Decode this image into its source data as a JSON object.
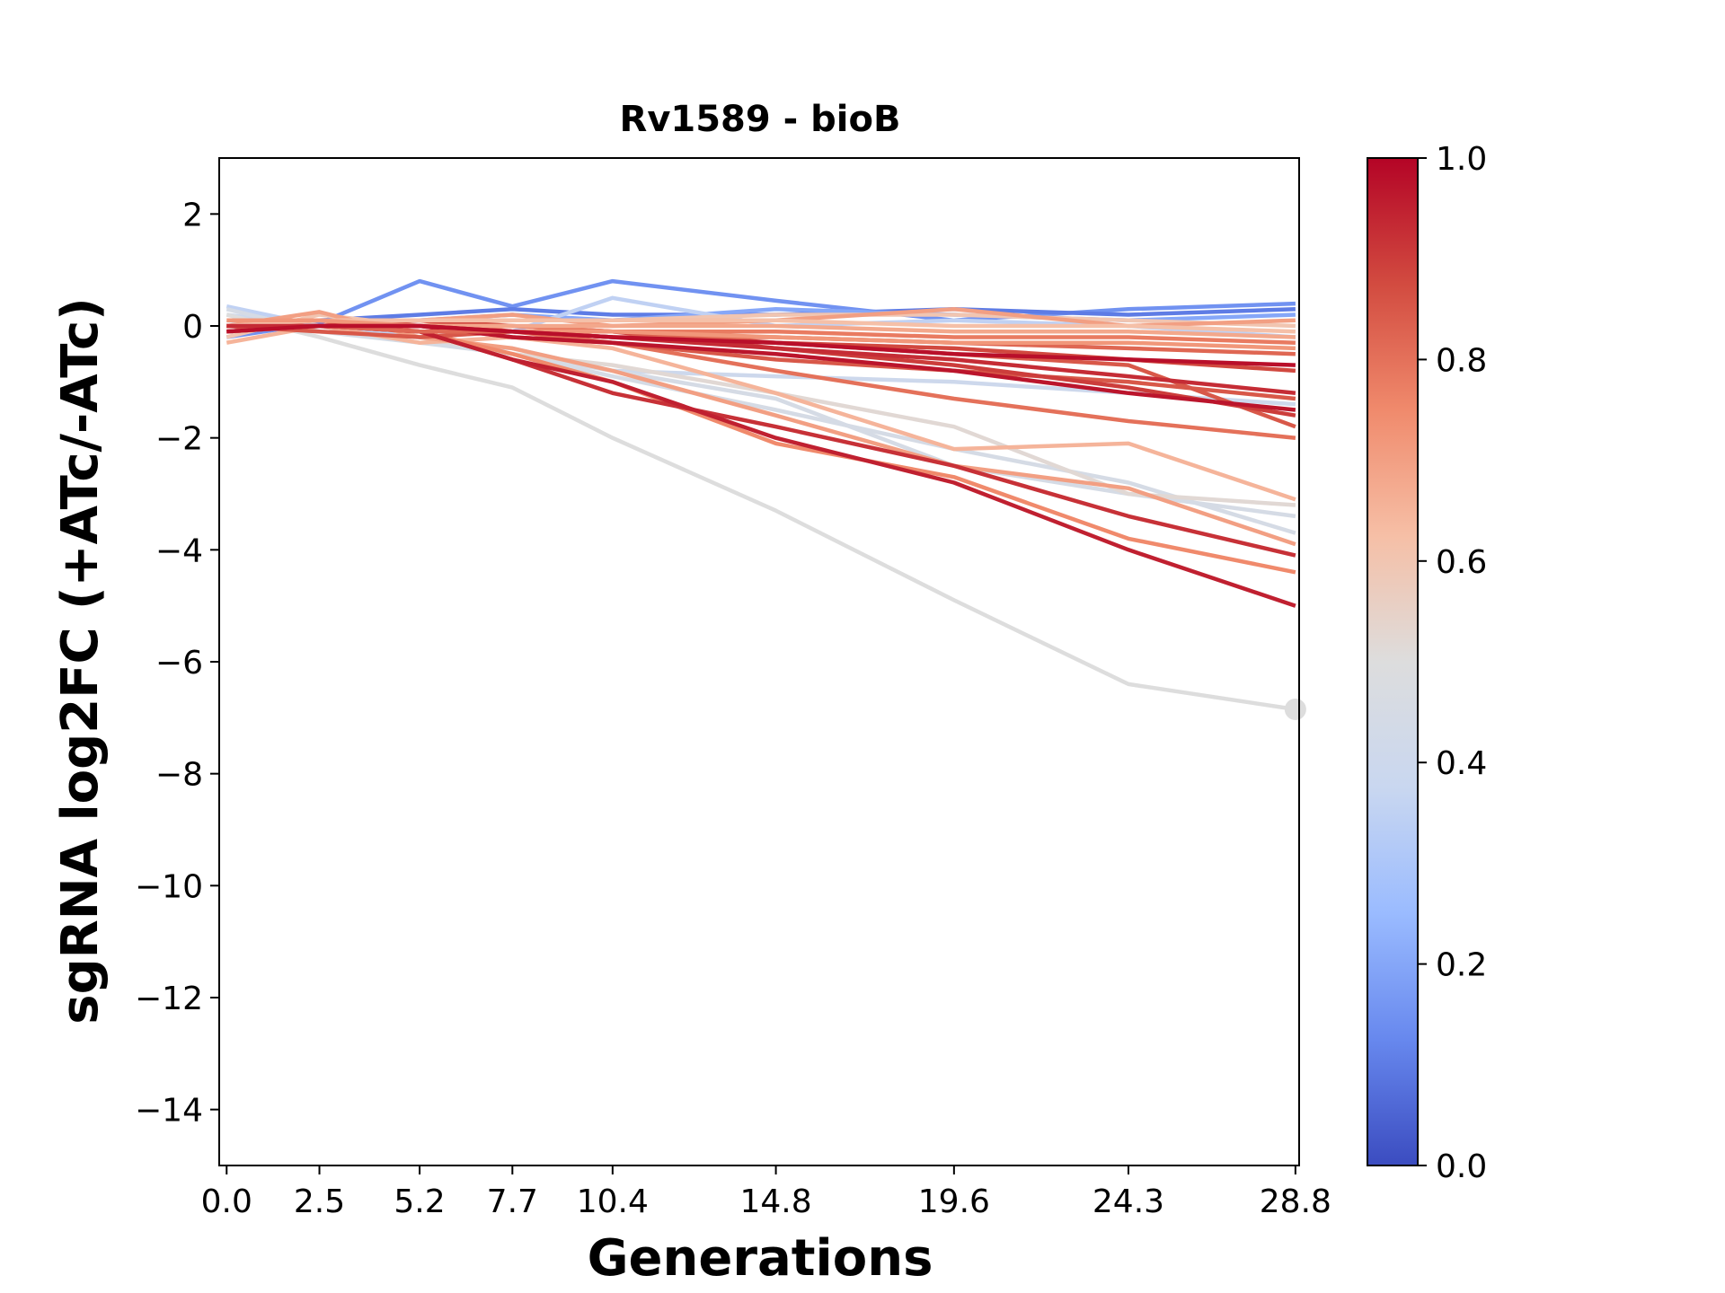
{
  "chart_data": {
    "type": "line",
    "title": "Rv1589 - bioB",
    "xlabel": "Generations",
    "ylabel": "sgRNA log2FC (+ATc/-ATc)",
    "x": [
      0.0,
      2.5,
      5.2,
      7.7,
      10.4,
      14.8,
      19.6,
      24.3,
      28.8
    ],
    "x_tick_labels": [
      "0.0",
      "2.5",
      "5.2",
      "7.7",
      "10.4",
      "14.8",
      "19.6",
      "24.3",
      "28.8"
    ],
    "xlim": [
      -0.2,
      28.9
    ],
    "ylim": [
      -15,
      3
    ],
    "y_ticks": [
      2,
      0,
      -2,
      -4,
      -6,
      -8,
      -10,
      -12,
      -14
    ],
    "y_tick_labels": [
      "2",
      "0",
      "−2",
      "−4",
      "−6",
      "−8",
      "−10",
      "−12",
      "−14"
    ],
    "grid": false,
    "colormap": "coolwarm",
    "colorbar": {
      "range": [
        0.0,
        1.0
      ],
      "ticks": [
        0.0,
        0.2,
        0.4,
        0.6,
        0.8,
        1.0
      ],
      "tick_labels": [
        "0.0",
        "0.2",
        "0.4",
        "0.6",
        "0.8",
        "1.0"
      ],
      "colors": [
        "#3b4cc0",
        "#6788ee",
        "#9abbff",
        "#c9d7f0",
        "#dddddd",
        "#f6bfa6",
        "#f08a6c",
        "#d24b40",
        "#b40426"
      ]
    },
    "series": [
      {
        "value": 0.15,
        "values": [
          -0.2,
          0.05,
          0.8,
          0.35,
          0.8,
          0.45,
          0.1,
          0.3,
          0.4
        ]
      },
      {
        "value": 0.1,
        "values": [
          0.0,
          0.1,
          0.2,
          0.3,
          0.2,
          0.2,
          0.3,
          0.2,
          0.3
        ]
      },
      {
        "value": 0.2,
        "values": [
          -0.1,
          0.0,
          0.1,
          0.2,
          0.1,
          0.3,
          0.2,
          0.1,
          0.2
        ]
      },
      {
        "value": 0.35,
        "values": [
          0.35,
          0.0,
          -0.2,
          -0.1,
          0.5,
          0.0,
          0.1,
          0.0,
          -0.2
        ]
      },
      {
        "value": 0.4,
        "values": [
          0.2,
          0.0,
          -0.3,
          -0.4,
          -0.8,
          -0.9,
          -1.0,
          -1.2,
          -1.4
        ]
      },
      {
        "value": 0.45,
        "values": [
          0.3,
          -0.1,
          -0.2,
          -0.5,
          -0.8,
          -1.3,
          -2.5,
          -3.0,
          -3.4
        ]
      },
      {
        "value": 0.45,
        "values": [
          0.1,
          -0.1,
          -0.3,
          -0.5,
          -0.9,
          -1.5,
          -2.2,
          -2.8,
          -3.7
        ]
      },
      {
        "value": 0.5,
        "values": [
          0.2,
          -0.2,
          -0.7,
          -1.1,
          -2.0,
          -3.3,
          -4.9,
          -6.4,
          -6.85
        ]
      },
      {
        "value": 0.52,
        "values": [
          0.0,
          -0.1,
          -0.2,
          -0.5,
          -0.7,
          -1.2,
          -1.8,
          -3.0,
          -3.2
        ]
      },
      {
        "value": 0.6,
        "values": [
          -0.2,
          0.2,
          0.0,
          0.1,
          0.1,
          0.2,
          0.2,
          0.1,
          0.0
        ]
      },
      {
        "value": 0.65,
        "values": [
          -0.3,
          0.0,
          -0.3,
          -0.2,
          -0.4,
          -1.2,
          -2.2,
          -2.1,
          -3.1
        ]
      },
      {
        "value": 0.7,
        "values": [
          0.0,
          0.25,
          -0.2,
          -0.4,
          -0.8,
          -1.6,
          -2.5,
          -2.9,
          -3.9
        ]
      },
      {
        "value": 0.75,
        "values": [
          0.0,
          0.1,
          -0.1,
          -0.5,
          -1.0,
          -2.1,
          -2.7,
          -3.8,
          -4.4
        ]
      },
      {
        "value": 0.7,
        "values": [
          0.0,
          0.1,
          0.1,
          0.2,
          0.0,
          0.1,
          0.3,
          0.0,
          0.1
        ]
      },
      {
        "value": 0.8,
        "values": [
          0.0,
          0.0,
          0.1,
          -0.1,
          -0.3,
          -0.8,
          -1.3,
          -1.7,
          -2.0
        ]
      },
      {
        "value": 0.85,
        "values": [
          -0.1,
          0.0,
          0.0,
          -0.2,
          -0.3,
          -0.6,
          -0.8,
          -1.0,
          -1.3
        ]
      },
      {
        "value": 0.85,
        "values": [
          0.0,
          -0.1,
          -0.2,
          -0.1,
          -0.2,
          -0.3,
          -0.5,
          -0.7,
          -1.8
        ]
      },
      {
        "value": 0.9,
        "values": [
          -0.1,
          0.0,
          0.0,
          -0.1,
          -0.1,
          -0.4,
          -0.7,
          -1.1,
          -1.6
        ]
      },
      {
        "value": 0.92,
        "values": [
          0.0,
          0.0,
          -0.1,
          -0.6,
          -1.2,
          -1.8,
          -2.5,
          -3.4,
          -4.1
        ]
      },
      {
        "value": 0.95,
        "values": [
          0.0,
          0.0,
          -0.1,
          -0.6,
          -1.0,
          -2.0,
          -2.8,
          -4.0,
          -5.0
        ]
      },
      {
        "value": 0.97,
        "values": [
          0.0,
          0.0,
          0.0,
          -0.2,
          -0.3,
          -0.5,
          -0.8,
          -1.2,
          -1.5
        ]
      },
      {
        "value": 0.88,
        "values": [
          -0.1,
          0.0,
          0.1,
          0.0,
          -0.1,
          -0.3,
          -0.4,
          -0.6,
          -0.8
        ]
      },
      {
        "value": 0.82,
        "values": [
          0.0,
          0.0,
          -0.1,
          -0.1,
          -0.2,
          -0.2,
          -0.3,
          -0.4,
          -0.5
        ]
      },
      {
        "value": 0.78,
        "values": [
          0.0,
          0.1,
          0.0,
          0.0,
          -0.1,
          -0.1,
          -0.2,
          -0.2,
          -0.3
        ]
      },
      {
        "value": 0.68,
        "values": [
          -0.1,
          0.0,
          0.0,
          0.0,
          0.0,
          0.0,
          -0.1,
          -0.1,
          -0.2
        ]
      },
      {
        "value": 0.62,
        "values": [
          0.0,
          0.1,
          0.1,
          0.1,
          0.1,
          0.1,
          0.0,
          0.0,
          -0.1
        ]
      },
      {
        "value": 0.72,
        "values": [
          0.1,
          0.1,
          0.0,
          -0.1,
          -0.1,
          -0.2,
          -0.3,
          -0.3,
          -0.4
        ]
      },
      {
        "value": 0.93,
        "values": [
          0.0,
          0.0,
          0.0,
          -0.1,
          -0.2,
          -0.4,
          -0.6,
          -0.9,
          -1.2
        ]
      },
      {
        "value": 0.98,
        "values": [
          -0.1,
          0.0,
          0.0,
          -0.1,
          -0.2,
          -0.3,
          -0.5,
          -0.6,
          -0.7
        ]
      }
    ],
    "marker": {
      "x": 28.8,
      "y": -6.85,
      "series_value": 0.5
    }
  }
}
